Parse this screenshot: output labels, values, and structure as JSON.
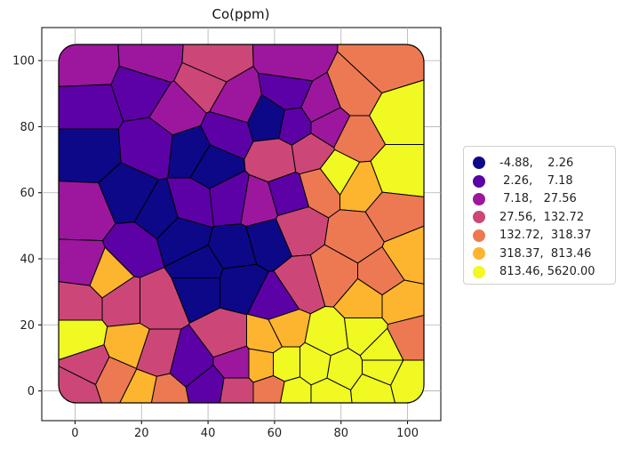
{
  "chart_data": {
    "type": "choropleth",
    "title": "Co(ppm)",
    "x_ticks": [
      0,
      20,
      40,
      60,
      80,
      100
    ],
    "y_ticks": [
      0,
      20,
      40,
      60,
      80,
      100
    ],
    "xlim": [
      -10,
      110
    ],
    "ylim": [
      -9,
      110
    ],
    "grid": true,
    "legend_position": "right",
    "classes": [
      {
        "label": "-4.88,    2.26",
        "color": "#0d0887"
      },
      {
        "label": " 2.26,    7.18",
        "color": "#5c01a6"
      },
      {
        "label": " 7.18,   27.56",
        "color": "#9c179e"
      },
      {
        "label": "27.56,  132.72",
        "color": "#cc4778"
      },
      {
        "label": "132.72,  318.37",
        "color": "#ed7953"
      },
      {
        "label": "318.37,  813.46",
        "color": "#fdb42f"
      },
      {
        "label": "813.46, 5620.00",
        "color": "#f0f921"
      }
    ]
  }
}
